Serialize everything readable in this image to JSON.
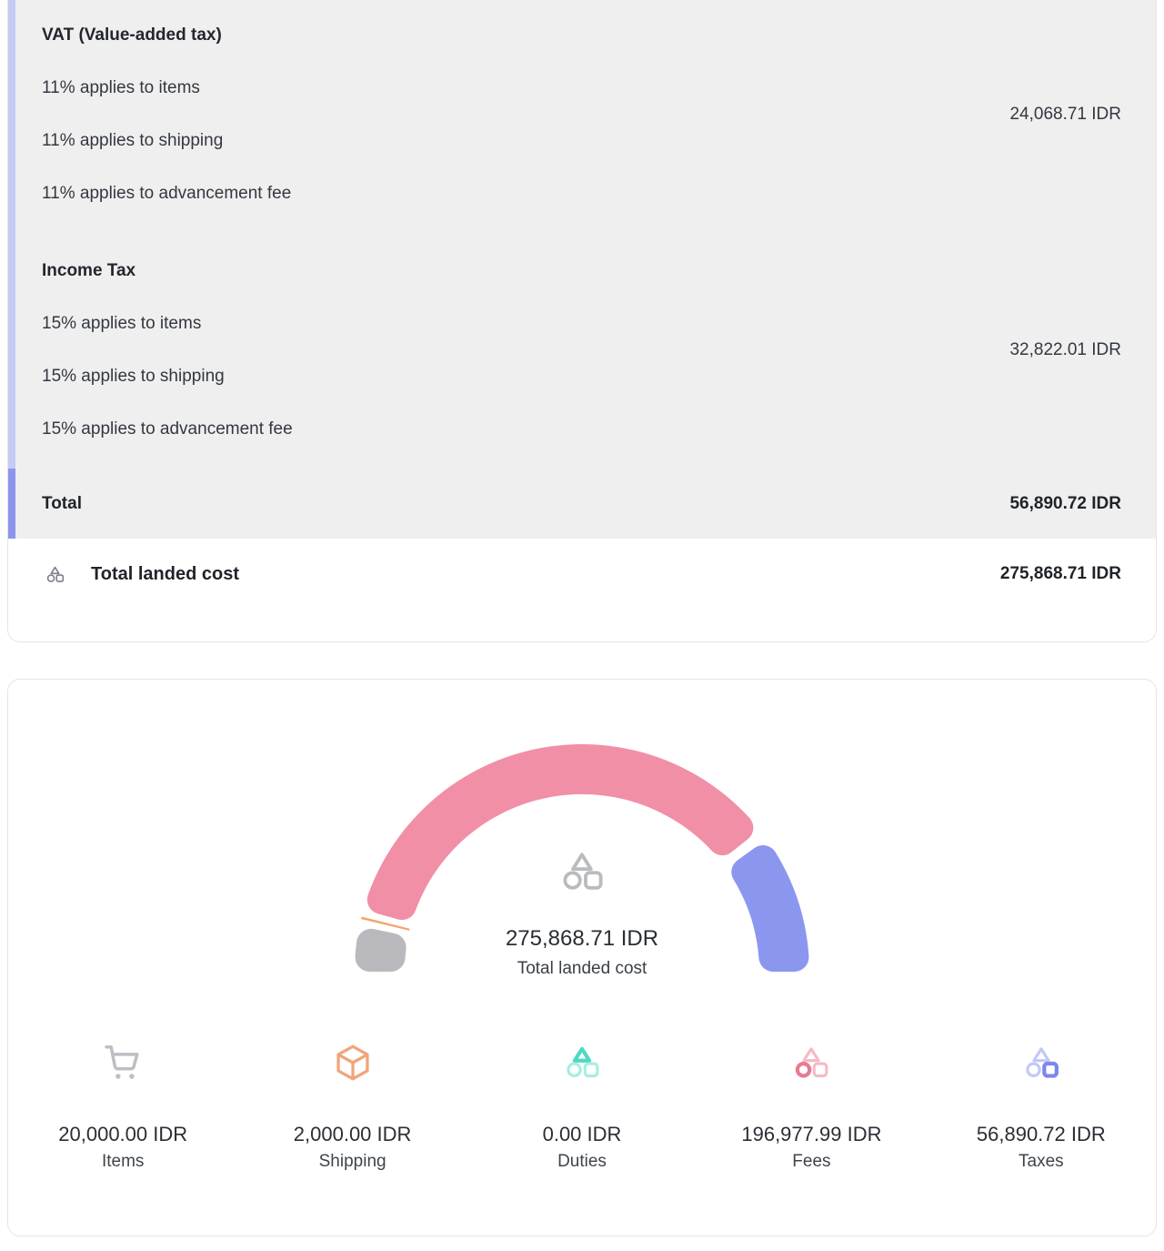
{
  "colors": {
    "scrollbar_track": "#c6cbf5",
    "scrollbar_thumb": "#8c95ee",
    "panel_bg": "#efeff0",
    "card_border": "#e4e4e7",
    "segment_items": "#b9b9bd",
    "segment_shipping": "#f2a469",
    "segment_duties": "#55dbc5",
    "segment_fees": "#f18fa7",
    "segment_taxes": "#8b97ee"
  },
  "tax_breakdown": {
    "groups": [
      {
        "heading": "VAT (Value-added tax)",
        "lines": [
          "11% applies to items",
          "11% applies to shipping",
          "11% applies to advancement fee"
        ],
        "amount": "24,068.71 IDR"
      },
      {
        "heading": "Income Tax",
        "lines": [
          "15% applies to items",
          "15% applies to shipping",
          "15% applies to advancement fee"
        ],
        "amount": "32,822.01 IDR"
      }
    ],
    "total": {
      "label": "Total",
      "amount": "56,890.72 IDR"
    },
    "landed": {
      "label": "Total landed cost",
      "amount": "275,868.71 IDR"
    }
  },
  "chart_data": {
    "type": "gauge",
    "title": "Total landed cost",
    "center_value": "275,868.71 IDR",
    "unit": "IDR",
    "total": 275868.71,
    "angle_span_deg": 180,
    "segments": [
      {
        "label": "Items",
        "value": 20000.0,
        "display": "20,000.00 IDR",
        "color": "#b9b9bd",
        "icon": "cart-icon"
      },
      {
        "label": "Shipping",
        "value": 2000.0,
        "display": "2,000.00 IDR",
        "color": "#f2a469",
        "icon": "package-icon"
      },
      {
        "label": "Duties",
        "value": 0.0,
        "display": "0.00 IDR",
        "color": "#55dbc5",
        "icon": "shapes-triangle-icon"
      },
      {
        "label": "Fees",
        "value": 196977.99,
        "display": "196,977.99 IDR",
        "color": "#f18fa7",
        "icon": "shapes-circle-icon"
      },
      {
        "label": "Taxes",
        "value": 56890.72,
        "display": "56,890.72 IDR",
        "color": "#8b97ee",
        "icon": "shapes-square-icon"
      }
    ],
    "geometry": {
      "outer_radius": 250,
      "inner_radius": 195,
      "pad_angle_deg": 3,
      "corner_radius": 16
    }
  }
}
